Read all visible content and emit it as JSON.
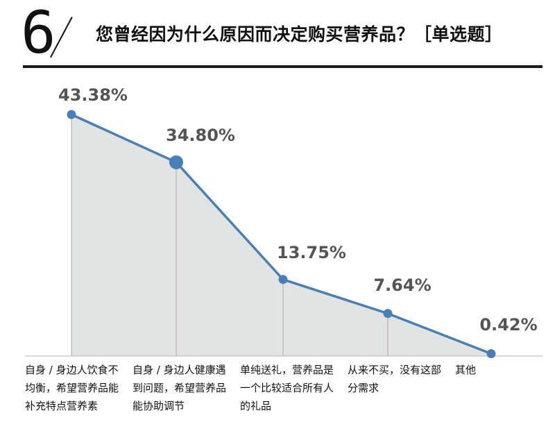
{
  "header": {
    "question_number": "6",
    "question_text": "您曾经因为什么原因而决定购买营养品？［单选题］"
  },
  "chart_data": {
    "type": "area",
    "categories": [
      "自身 / 身边人饮食不均衡，希望营养品能补充特点营养素",
      "自身 / 身边人健康遇到问题，希望营养品能协助调节",
      "单纯送礼，营养品是一个比较适合所有人的礼品",
      "从来不买，没有这部分需求",
      "其他"
    ],
    "values": [
      43.38,
      34.8,
      13.75,
      7.64,
      0.42
    ],
    "data_labels": [
      "43.38%",
      "34.80%",
      "13.75%",
      "7.64%",
      "0.42%"
    ],
    "highlight_index": 1,
    "ylim": [
      0,
      43.38
    ],
    "colors": {
      "line": "#4a7fb5",
      "fill": "#e2e3e3",
      "marker": "#4a7fb5",
      "dropline": "#aaaaaa",
      "label": "#555555"
    }
  }
}
